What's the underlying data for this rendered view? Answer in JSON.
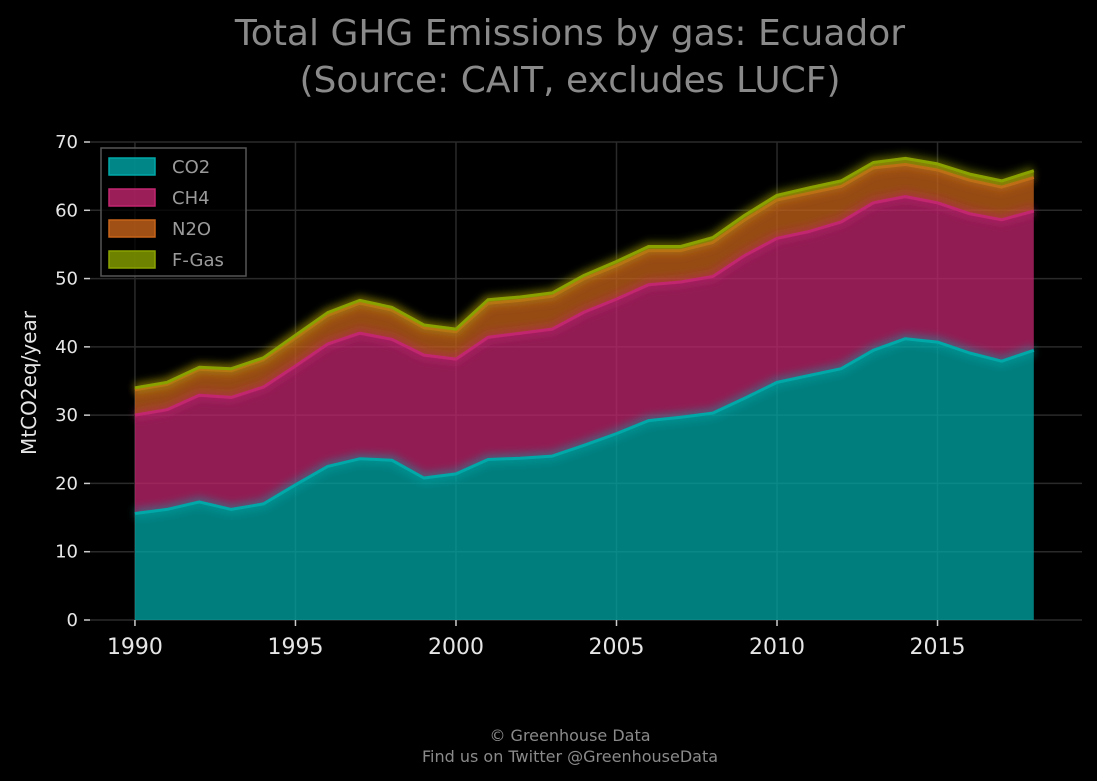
{
  "footer": {
    "line1": "© Greenhouse Data",
    "line2": "Find us on Twitter @GreenhouseData"
  },
  "chart_data": {
    "type": "area",
    "stacked": true,
    "title_lines": [
      "Total GHG Emissions by gas: Ecuador",
      "(Source: CAIT, excludes LUCF)"
    ],
    "xlabel": "",
    "ylabel": "MtCO2eq/year",
    "xlim": [
      1988.6,
      2019.5
    ],
    "ylim": [
      0,
      70
    ],
    "xticks": [
      1990,
      1995,
      2000,
      2005,
      2010,
      2015
    ],
    "yticks": [
      0,
      10,
      20,
      30,
      40,
      50,
      60,
      70
    ],
    "grid": true,
    "legend_position": "top-left",
    "x": [
      1990,
      1991,
      1992,
      1993,
      1994,
      1995,
      1996,
      1997,
      1998,
      1999,
      2000,
      2001,
      2002,
      2003,
      2004,
      2005,
      2006,
      2007,
      2008,
      2009,
      2010,
      2011,
      2012,
      2013,
      2014,
      2015,
      2016,
      2017,
      2018
    ],
    "series": [
      {
        "name": "CO2",
        "color": "#00a8a8",
        "values": [
          15.6,
          16.2,
          17.3,
          16.2,
          17.0,
          19.8,
          22.5,
          23.6,
          23.4,
          20.8,
          21.4,
          23.5,
          23.7,
          24.0,
          25.6,
          27.3,
          29.2,
          29.7,
          30.3,
          32.5,
          34.8,
          35.8,
          36.8,
          39.5,
          41.2,
          40.7,
          39.1,
          37.9,
          39.5
        ]
      },
      {
        "name": "CH4",
        "color": "#c2266f",
        "values": [
          14.4,
          14.6,
          15.6,
          16.4,
          17.1,
          17.4,
          17.9,
          18.4,
          17.7,
          18.0,
          16.8,
          17.9,
          18.3,
          18.6,
          19.5,
          19.7,
          19.9,
          19.8,
          20.0,
          20.9,
          21.1,
          21.1,
          21.5,
          21.6,
          20.8,
          20.4,
          20.4,
          20.7,
          20.4
        ]
      },
      {
        "name": "N2O",
        "color": "#c8641a",
        "values": [
          3.7,
          3.7,
          3.8,
          3.9,
          4.0,
          4.1,
          4.2,
          4.4,
          4.3,
          4.0,
          4.0,
          5.0,
          4.8,
          4.8,
          4.9,
          4.9,
          5.0,
          4.6,
          5.0,
          5.2,
          5.6,
          5.6,
          5.2,
          5.1,
          4.7,
          4.8,
          4.9,
          4.8,
          4.9
        ]
      },
      {
        "name": "F-Gas",
        "color": "#8aa200",
        "values": [
          0.3,
          0.3,
          0.3,
          0.3,
          0.3,
          0.4,
          0.4,
          0.4,
          0.4,
          0.4,
          0.4,
          0.5,
          0.5,
          0.5,
          0.5,
          0.6,
          0.6,
          0.6,
          0.7,
          0.7,
          0.7,
          0.8,
          0.8,
          0.8,
          0.9,
          0.9,
          0.9,
          0.9,
          1.0
        ]
      }
    ]
  }
}
